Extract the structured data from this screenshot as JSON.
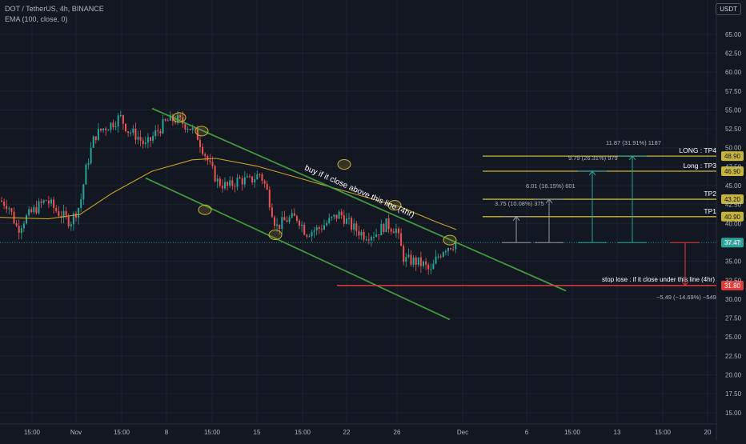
{
  "header": {
    "title": "DOT / TetherUS, 4h, BINANCE",
    "indicator": "EMA (100, close, 0)",
    "currency": "USDT"
  },
  "colors": {
    "background": "#131722",
    "grid": "#1e2230",
    "up": "#26a69a",
    "down": "#ef5350",
    "ema": "#c9a227",
    "channel": "#3f9a3f",
    "target": "#c8b43a",
    "stop": "#e03b3b",
    "measure_gray": "#9598a1",
    "measure_teal": "#26a69a",
    "axis_text": "#b2b5be"
  },
  "chart_data": {
    "type": "candlestick",
    "y_ticks": [
      "65.00",
      "62.50",
      "60.00",
      "57.50",
      "55.00",
      "52.50",
      "50.00",
      "47.50",
      "45.00",
      "42.50",
      "40.00",
      "37.50",
      "35.00",
      "32.50",
      "30.00",
      "27.50",
      "25.00",
      "22.50",
      "20.00",
      "17.50",
      "15.00"
    ],
    "ylim": [
      13.5,
      67.2
    ],
    "x_ticks": [
      "15:00",
      "Nov",
      "15:00",
      "8",
      "15:00",
      "15",
      "15:00",
      "22",
      "26",
      "Dec",
      "6",
      "15:00",
      "13",
      "15:00",
      "20"
    ],
    "candle_anchors": [
      {
        "x": 0,
        "p": 43
      },
      {
        "x": 10,
        "p": 42.5
      },
      {
        "x": 22,
        "p": 39.2
      },
      {
        "x": 30,
        "p": 40.5
      },
      {
        "x": 45,
        "p": 42
      },
      {
        "x": 58,
        "p": 43.1
      },
      {
        "x": 72,
        "p": 41.5
      },
      {
        "x": 88,
        "p": 40.2
      },
      {
        "x": 100,
        "p": 42.5
      },
      {
        "x": 108,
        "p": 47.5
      },
      {
        "x": 118,
        "p": 51.5
      },
      {
        "x": 128,
        "p": 52.5
      },
      {
        "x": 140,
        "p": 53.2
      },
      {
        "x": 150,
        "p": 54.1
      },
      {
        "x": 160,
        "p": 52.3
      },
      {
        "x": 172,
        "p": 51.5
      },
      {
        "x": 182,
        "p": 50.2
      },
      {
        "x": 195,
        "p": 52
      },
      {
        "x": 208,
        "p": 53.5
      },
      {
        "x": 220,
        "p": 53.8
      },
      {
        "x": 236,
        "p": 52.8
      },
      {
        "x": 246,
        "p": 51.7
      },
      {
        "x": 256,
        "p": 49.2
      },
      {
        "x": 262,
        "p": 47.6
      },
      {
        "x": 272,
        "p": 45.5
      },
      {
        "x": 285,
        "p": 44.8
      },
      {
        "x": 298,
        "p": 45.8
      },
      {
        "x": 312,
        "p": 45.6
      },
      {
        "x": 325,
        "p": 46.6
      },
      {
        "x": 333,
        "p": 44.5
      },
      {
        "x": 345,
        "p": 39.5
      },
      {
        "x": 358,
        "p": 40.5
      },
      {
        "x": 372,
        "p": 40.8
      },
      {
        "x": 382,
        "p": 38.8
      },
      {
        "x": 398,
        "p": 39.3
      },
      {
        "x": 410,
        "p": 40.2
      },
      {
        "x": 425,
        "p": 41.3
      },
      {
        "x": 440,
        "p": 39.5
      },
      {
        "x": 455,
        "p": 38.5
      },
      {
        "x": 470,
        "p": 38.7
      },
      {
        "x": 482,
        "p": 39.9
      },
      {
        "x": 495,
        "p": 39.2
      },
      {
        "x": 505,
        "p": 35.2
      },
      {
        "x": 518,
        "p": 35
      },
      {
        "x": 530,
        "p": 34.5
      },
      {
        "x": 538,
        "p": 33.5
      },
      {
        "x": 545,
        "p": 35.3
      },
      {
        "x": 555,
        "p": 36.8
      },
      {
        "x": 565,
        "p": 37.2
      },
      {
        "x": 571,
        "p": 37.47
      }
    ],
    "ema_100": [
      {
        "x": 0,
        "p": 40.8
      },
      {
        "x": 60,
        "p": 40.6
      },
      {
        "x": 100,
        "p": 41.2
      },
      {
        "x": 140,
        "p": 44
      },
      {
        "x": 190,
        "p": 46.9
      },
      {
        "x": 240,
        "p": 48.4
      },
      {
        "x": 270,
        "p": 48.6
      },
      {
        "x": 320,
        "p": 47.6
      },
      {
        "x": 380,
        "p": 45.8
      },
      {
        "x": 440,
        "p": 44
      },
      {
        "x": 500,
        "p": 42.2
      },
      {
        "x": 545,
        "p": 40.2
      },
      {
        "x": 570,
        "p": 39.2
      }
    ],
    "current_price": "37.47",
    "channel_lines": [
      {
        "name": "upper",
        "from": {
          "x": 190,
          "p": 55.2
        },
        "to": {
          "x": 707,
          "p": 31.1
        }
      },
      {
        "name": "lower",
        "from": {
          "x": 182,
          "p": 46.0
        },
        "to": {
          "x": 562,
          "p": 27.3
        }
      }
    ],
    "touch_markers": [
      {
        "x": 224,
        "p": 54.0
      },
      {
        "x": 252,
        "p": 52.2
      },
      {
        "x": 256,
        "p": 41.8
      },
      {
        "x": 344,
        "p": 38.5
      },
      {
        "x": 430,
        "p": 47.8
      },
      {
        "x": 493,
        "p": 42.4
      },
      {
        "x": 562,
        "p": 37.8
      }
    ],
    "targets": [
      {
        "label": "LONG : TP4",
        "price": "48.90",
        "p": 48.9
      },
      {
        "label": "Long : TP3",
        "price": "46.90",
        "p": 46.9
      },
      {
        "label": "TP2",
        "price": "43.20",
        "p": 43.2
      },
      {
        "label": "TP1",
        "price": "40.90",
        "p": 40.9
      }
    ],
    "stop": {
      "label": "stop lose : if it close under this line (4hr)",
      "price": "31.80",
      "p": 31.8
    },
    "measurements": [
      {
        "text": "3.75 (10.08%) 375",
        "color": "gray",
        "x_label": 618,
        "x_arrow": 645,
        "p": 40.9
      },
      {
        "text": "6.01 (16.15%) 601",
        "color": "gray",
        "x_label": 657,
        "x_arrow": 686,
        "p": 43.2
      },
      {
        "text": "9.79 (26.31%) 979",
        "color": "teal",
        "x_label": 710,
        "x_arrow": 740,
        "p": 46.9
      },
      {
        "text": "11.87 (31.91%) 1187",
        "color": "teal",
        "x_label": 757,
        "x_arrow": 790,
        "p": 48.9
      },
      {
        "text": "−5.49 (−14.69%) −549",
        "color": "red",
        "x_label": 820,
        "x_arrow": 856,
        "p": 31.8
      }
    ],
    "annotation": "buy if it close above this line (4hr)"
  }
}
